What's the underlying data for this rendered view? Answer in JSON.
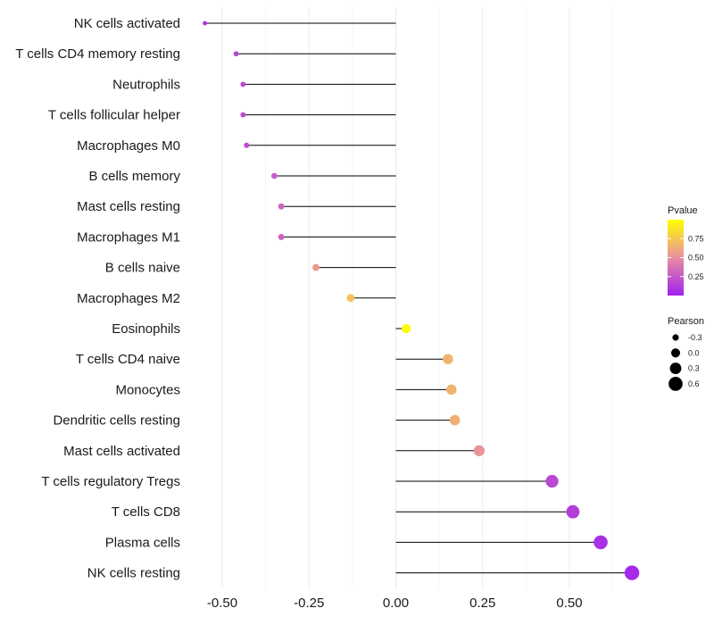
{
  "chart_data": {
    "type": "lollipop",
    "title": "",
    "xlabel": "",
    "ylabel": "",
    "xlim": [
      -0.6,
      0.72
    ],
    "x_ticks": [
      -0.5,
      -0.25,
      0.0,
      0.25,
      0.5
    ],
    "x_tick_labels": [
      "-0.50",
      "-0.25",
      "0.00",
      "0.25",
      "0.50"
    ],
    "grid": true,
    "points": [
      {
        "label": "NK cells activated",
        "pearson": -0.55,
        "pvalue": 0.08
      },
      {
        "label": "T cells CD4 memory resting",
        "pearson": -0.46,
        "pvalue": 0.17
      },
      {
        "label": "Neutrophils",
        "pearson": -0.44,
        "pvalue": 0.18
      },
      {
        "label": "T cells follicular helper",
        "pearson": -0.44,
        "pvalue": 0.18
      },
      {
        "label": "Macrophages M0",
        "pearson": -0.43,
        "pvalue": 0.19
      },
      {
        "label": "B cells memory",
        "pearson": -0.35,
        "pvalue": 0.28
      },
      {
        "label": "Mast cells resting",
        "pearson": -0.33,
        "pvalue": 0.31
      },
      {
        "label": "Macrophages M1",
        "pearson": -0.33,
        "pvalue": 0.31
      },
      {
        "label": "B cells naive",
        "pearson": -0.23,
        "pvalue": 0.55
      },
      {
        "label": "Macrophages M2",
        "pearson": -0.13,
        "pvalue": 0.72
      },
      {
        "label": "Eosinophils",
        "pearson": 0.03,
        "pvalue": 0.98
      },
      {
        "label": "T cells CD4 naive",
        "pearson": 0.15,
        "pvalue": 0.66
      },
      {
        "label": "Monocytes",
        "pearson": 0.16,
        "pvalue": 0.66
      },
      {
        "label": "Dendritic cells resting",
        "pearson": 0.17,
        "pvalue": 0.64
      },
      {
        "label": "Mast cells activated",
        "pearson": 0.24,
        "pvalue": 0.52
      },
      {
        "label": "T cells regulatory  Tregs ",
        "pearson": 0.45,
        "pvalue": 0.18
      },
      {
        "label": "T cells CD8",
        "pearson": 0.51,
        "pvalue": 0.13
      },
      {
        "label": "Plasma cells",
        "pearson": 0.59,
        "pvalue": 0.07
      },
      {
        "label": "NK cells resting",
        "pearson": 0.68,
        "pvalue": 0.04
      }
    ],
    "legend_color": {
      "title": "Pvalue",
      "ticks": [
        0.25,
        0.5,
        0.75
      ],
      "tick_labels": [
        "0.25",
        "0.50",
        "0.75"
      ],
      "range": [
        0.0,
        1.0
      ],
      "low_color": "#a020f0",
      "mid_color": "#e98fa0",
      "high_color": "#ffff00"
    },
    "legend_size": {
      "title": "Pearson",
      "values": [
        -0.3,
        0.0,
        0.3,
        0.6
      ],
      "labels": [
        "-0.3",
        "0.0",
        "0.3",
        "0.6"
      ]
    }
  }
}
